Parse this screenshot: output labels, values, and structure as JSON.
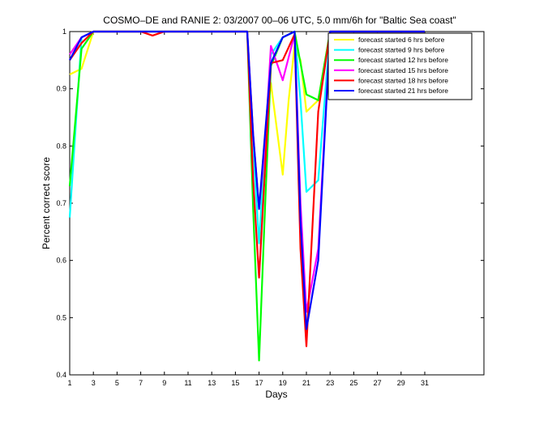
{
  "chart_data": {
    "type": "line",
    "title": "COSMO–DE and RANIE 2: 03/2007 00–06 UTC, 5.0 mm/6h for \"Baltic Sea coast\"",
    "xlabel": "Days",
    "ylabel": "Percent correct score",
    "xlim": [
      1,
      36
    ],
    "ylim": [
      0.4,
      1.0
    ],
    "xticks": [
      1,
      3,
      5,
      7,
      9,
      11,
      13,
      15,
      17,
      19,
      21,
      23,
      25,
      27,
      29,
      31
    ],
    "yticks": [
      0.4,
      0.5,
      0.6,
      0.7,
      0.8,
      0.9,
      1.0
    ],
    "ytick_labels": [
      "0.4",
      "0.5",
      "0.6",
      "0.7",
      "0.8",
      "0.9",
      "1"
    ],
    "grid": false,
    "legend_position": "top-right",
    "series": [
      {
        "name": "forecast started 6 hrs before",
        "color": "#ffff00",
        "points": [
          [
            1,
            0.925
          ],
          [
            2,
            0.935
          ],
          [
            3,
            1.0
          ],
          [
            4,
            1.0
          ],
          [
            5,
            1.0
          ],
          [
            6,
            1.0
          ],
          [
            7,
            1.0
          ],
          [
            8,
            1.0
          ],
          [
            9,
            1.0
          ],
          [
            10,
            1.0
          ],
          [
            11,
            1.0
          ],
          [
            12,
            1.0
          ],
          [
            13,
            1.0
          ],
          [
            14,
            1.0
          ],
          [
            15,
            1.0
          ],
          [
            16,
            1.0
          ],
          [
            16.5,
            0.82
          ],
          [
            17,
            0.69
          ],
          [
            17.5,
            0.82
          ],
          [
            18,
            0.91
          ],
          [
            19,
            0.75
          ],
          [
            19.5,
            0.88
          ],
          [
            20,
            0.975
          ],
          [
            20.5,
            0.95
          ],
          [
            21,
            0.86
          ],
          [
            22,
            0.88
          ],
          [
            23,
            1.0
          ],
          [
            24,
            1.0
          ],
          [
            31,
            1.0
          ]
        ]
      },
      {
        "name": "forecast started 9 hrs before",
        "color": "#00ffff",
        "points": [
          [
            1,
            0.675
          ],
          [
            2,
            0.99
          ],
          [
            3,
            1.0
          ],
          [
            4,
            1.0
          ],
          [
            16,
            1.0
          ],
          [
            16.5,
            0.8
          ],
          [
            17,
            0.63
          ],
          [
            17.5,
            0.8
          ],
          [
            18,
            0.96
          ],
          [
            19,
            0.99
          ],
          [
            20,
            1.0
          ],
          [
            20.5,
            0.88
          ],
          [
            21,
            0.72
          ],
          [
            22,
            0.74
          ],
          [
            23,
            1.0
          ],
          [
            31,
            1.0
          ]
        ]
      },
      {
        "name": "forecast started 12 hrs before",
        "color": "#00ff00",
        "points": [
          [
            1,
            0.73
          ],
          [
            2,
            0.97
          ],
          [
            3,
            1.0
          ],
          [
            4,
            1.0
          ],
          [
            16,
            1.0
          ],
          [
            16.5,
            0.69
          ],
          [
            17,
            0.425
          ],
          [
            17.5,
            0.69
          ],
          [
            18,
            0.94
          ],
          [
            19,
            0.99
          ],
          [
            20,
            1.0
          ],
          [
            21,
            0.89
          ],
          [
            22,
            0.88
          ],
          [
            23,
            1.0
          ],
          [
            31,
            1.0
          ]
        ]
      },
      {
        "name": "forecast started 15 hrs before",
        "color": "#ff00ff",
        "points": [
          [
            1,
            0.96
          ],
          [
            2,
            0.99
          ],
          [
            3,
            1.0
          ],
          [
            4,
            1.0
          ],
          [
            16,
            1.0
          ],
          [
            16.5,
            0.82
          ],
          [
            17,
            0.69
          ],
          [
            17.5,
            0.8
          ],
          [
            18,
            0.975
          ],
          [
            19,
            0.915
          ],
          [
            20,
            0.995
          ],
          [
            20.5,
            0.7
          ],
          [
            21,
            0.51
          ],
          [
            22,
            0.62
          ],
          [
            23,
            1.0
          ],
          [
            31,
            1.0
          ]
        ]
      },
      {
        "name": "forecast started 18 hrs before",
        "color": "#ff0000",
        "points": [
          [
            1,
            0.95
          ],
          [
            2,
            0.98
          ],
          [
            3,
            1.0
          ],
          [
            4,
            1.0
          ],
          [
            6,
            1.0
          ],
          [
            7,
            1.0
          ],
          [
            8,
            0.993
          ],
          [
            9,
            1.0
          ],
          [
            10,
            1.0
          ],
          [
            16,
            1.0
          ],
          [
            16.5,
            0.74
          ],
          [
            17,
            0.57
          ],
          [
            17.5,
            0.76
          ],
          [
            18,
            0.945
          ],
          [
            19,
            0.95
          ],
          [
            20,
            0.995
          ],
          [
            20.5,
            0.62
          ],
          [
            21,
            0.45
          ],
          [
            22,
            0.86
          ],
          [
            23,
            1.0
          ],
          [
            31,
            1.0
          ]
        ]
      },
      {
        "name": "forecast started 21 hrs before",
        "color": "#0000ff",
        "points": [
          [
            1,
            0.95
          ],
          [
            2,
            0.99
          ],
          [
            3,
            1.0
          ],
          [
            4,
            1.0
          ],
          [
            16,
            1.0
          ],
          [
            16.5,
            0.82
          ],
          [
            17,
            0.69
          ],
          [
            17.5,
            0.82
          ],
          [
            18,
            0.945
          ],
          [
            19,
            0.99
          ],
          [
            20,
            1.0
          ],
          [
            20.5,
            0.67
          ],
          [
            21,
            0.48
          ],
          [
            22,
            0.6
          ],
          [
            23,
            1.0
          ],
          [
            31,
            1.0
          ]
        ]
      }
    ]
  }
}
